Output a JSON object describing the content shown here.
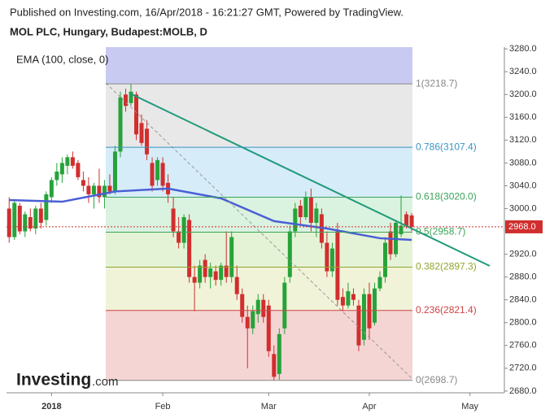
{
  "chart_data": {
    "type": "candlestick",
    "subtitle": "Published on Investing.com, 16/Apr/2018 - 16:21:27 GMT, Powered by TradingView.",
    "title": "MOL PLC, Hungary, Budapest:MOLB, D",
    "watermark": [
      "Investing",
      ".com"
    ],
    "ylim": [
      2677,
      3283
    ],
    "yticks": [
      {
        "value": 3280,
        "label": "3280.0"
      },
      {
        "value": 3240,
        "label": "3240.0"
      },
      {
        "value": 3200,
        "label": "3200.0"
      },
      {
        "value": 3160,
        "label": "3160.0"
      },
      {
        "value": 3120,
        "label": "3120.0"
      },
      {
        "value": 3080,
        "label": "3080.0"
      },
      {
        "value": 3040,
        "label": "3040.0"
      },
      {
        "value": 3000,
        "label": "3000.0"
      },
      {
        "value": 2920,
        "label": "2920.0"
      },
      {
        "value": 2880,
        "label": "2880.0"
      },
      {
        "value": 2840,
        "label": "2840.0"
      },
      {
        "value": 2800,
        "label": "2800.0"
      },
      {
        "value": 2760,
        "label": "2760.0"
      },
      {
        "value": 2720,
        "label": "2720.0"
      },
      {
        "value": 2680,
        "label": "2680.0"
      }
    ],
    "xlim": [
      -0.5,
      93.5
    ],
    "xticks": [
      {
        "value": 8,
        "label": "2018"
      },
      {
        "value": 29,
        "label": "Feb"
      },
      {
        "value": 49,
        "label": "Mar"
      },
      {
        "value": 68,
        "label": "Apr"
      },
      {
        "value": 87,
        "label": "May"
      }
    ],
    "up_color": "#26a33a",
    "down_color": "#d12e2e",
    "open": [
      3000,
      2950,
      3005,
      2960,
      2985,
      2965,
      3000,
      2980,
      3020,
      3050,
      3060,
      3075,
      3090,
      3080,
      3050,
      3040,
      3025,
      3040,
      3020,
      3040,
      3030,
      3100,
      3200,
      3185,
      3200,
      3150,
      3140,
      3080,
      3050,
      3080,
      3045,
      3000,
      2960,
      2940,
      2980,
      2880,
      2870,
      2910,
      2880,
      2890,
      2875,
      2900,
      2880,
      2880,
      2850,
      2810,
      2790,
      2815,
      2840,
      2830,
      2745,
      2710,
      2790,
      2880,
      2960,
      3005,
      2985,
      3020,
      2975,
      2990,
      2940,
      2890,
      2960,
      2845,
      2830,
      2850,
      2830,
      2770,
      2850,
      2800,
      2860,
      2880,
      2960,
      2920,
      2955,
      2990,
      2988
    ],
    "high": [
      3020,
      3015,
      3010,
      2995,
      3000,
      3005,
      3010,
      3030,
      3055,
      3080,
      3090,
      3095,
      3100,
      3085,
      3065,
      3055,
      3045,
      3070,
      3050,
      3060,
      3110,
      3205,
      3210,
      3218.7,
      3205,
      3165,
      3155,
      3090,
      3090,
      3090,
      3060,
      3020,
      2985,
      2990,
      2990,
      2900,
      2910,
      2920,
      2905,
      2900,
      2905,
      2960,
      2960,
      2900,
      2860,
      2830,
      2830,
      2850,
      2850,
      2840,
      2760,
      2790,
      2880,
      2970,
      3010,
      3015,
      3030,
      3035,
      3010,
      3000,
      2960,
      2940,
      2975,
      2860,
      2870,
      2860,
      2840,
      2860,
      2870,
      2870,
      2890,
      2950,
      2975,
      2980,
      3023,
      2995,
      2992
    ],
    "low": [
      2940,
      2945,
      2955,
      2950,
      2960,
      2955,
      2965,
      2970,
      3010,
      3040,
      3045,
      3060,
      3070,
      3050,
      3030,
      3010,
      3000,
      3010,
      3000,
      3025,
      3025,
      3090,
      3170,
      3180,
      3120,
      3110,
      3085,
      3030,
      3040,
      3030,
      3010,
      2950,
      2930,
      2930,
      2870,
      2820,
      2860,
      2870,
      2860,
      2865,
      2865,
      2870,
      2870,
      2840,
      2800,
      2720,
      2780,
      2800,
      2800,
      2740,
      2698.7,
      2700,
      2780,
      2870,
      2950,
      2970,
      2980,
      2960,
      2950,
      2930,
      2880,
      2880,
      2830,
      2820,
      2825,
      2830,
      2750,
      2760,
      2770,
      2795,
      2855,
      2870,
      2910,
      2915,
      2950,
      2965,
      2960
    ],
    "close": [
      2950,
      3010,
      2960,
      2990,
      2965,
      3000,
      2975,
      3025,
      3050,
      3065,
      3080,
      3090,
      3075,
      3055,
      3040,
      3025,
      3040,
      3020,
      3040,
      3030,
      3100,
      3195,
      3180,
      3205,
      3130,
      3115,
      3095,
      3040,
      3085,
      3040,
      3025,
      2960,
      2940,
      2985,
      2880,
      2870,
      2900,
      2880,
      2895,
      2875,
      2900,
      2880,
      2950,
      2850,
      2810,
      2790,
      2820,
      2840,
      2810,
      2750,
      2705,
      2780,
      2870,
      2960,
      3000,
      2985,
      3020,
      2975,
      3000,
      2940,
      2890,
      2930,
      2840,
      2830,
      2855,
      2840,
      2760,
      2850,
      2790,
      2860,
      2880,
      2940,
      2920,
      2975,
      2970,
      2970,
      2968
    ],
    "ema": {
      "name": "EMA (100, close, 0)",
      "color": "#4a5fd4",
      "x": [
        0,
        10,
        20,
        30,
        40,
        50,
        60,
        70,
        76
      ],
      "values": [
        3015,
        3012,
        3030,
        3035,
        3018,
        2978,
        2965,
        2948,
        2945
      ]
    },
    "fib": {
      "top_band_color": "#c8caf2",
      "levels": [
        {
          "value": 3218.7,
          "label": "1(3218.7)",
          "color": "#888888",
          "band_color": "#e8e8e8"
        },
        {
          "value": 3107.4,
          "label": "0.786(3107.4)",
          "color": "#3a94c0",
          "band_color": "#d6ecf8"
        },
        {
          "value": 3020.0,
          "label": "0.618(3020.0)",
          "color": "#3da35a",
          "band_color": "#daf2e0"
        },
        {
          "value": 2958.7,
          "label": "0.5(2958.7)",
          "color": "#3da35a",
          "band_color": "#e4f3d6"
        },
        {
          "value": 2897.3,
          "label": "0.382(2897.3)",
          "color": "#8fa52f",
          "band_color": "#f0f3d8"
        },
        {
          "value": 2821.4,
          "label": "0.236(2821.4)",
          "color": "#cc4444",
          "band_color": "#f5d4d4"
        },
        {
          "value": 2698.7,
          "label": "0(2698.7)",
          "color": "#888888",
          "band_color": null
        }
      ]
    },
    "last_price": {
      "value": 2968.0,
      "label": "2968.0",
      "color": "#d12e2e"
    }
  }
}
